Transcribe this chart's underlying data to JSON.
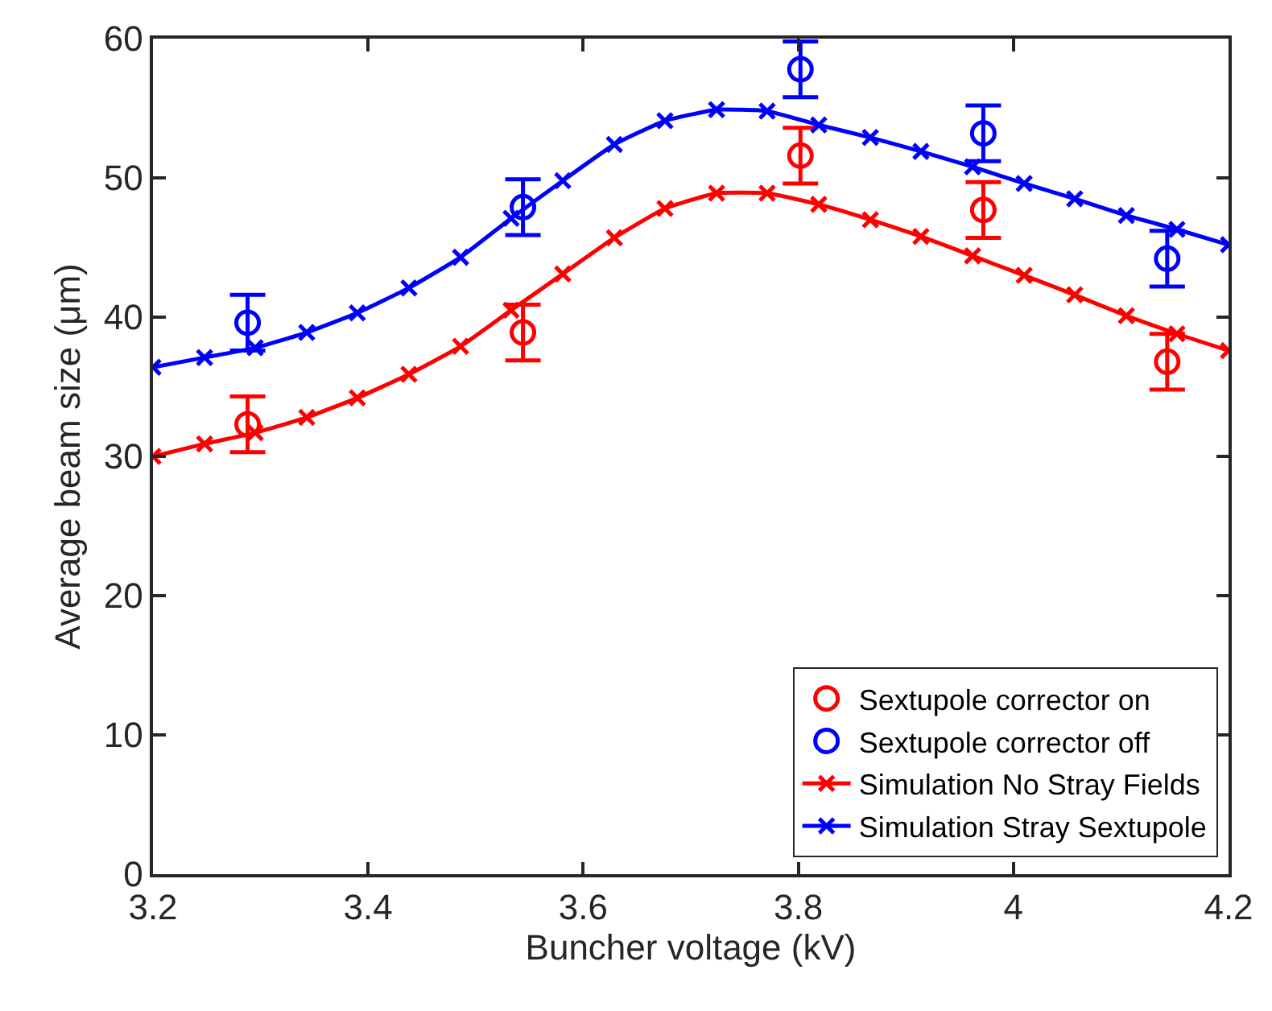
{
  "chart_data": {
    "type": "line",
    "xlabel": "Buncher voltage (kV)",
    "ylabel": "Average beam size (μm)",
    "xlim": [
      3.2,
      4.2
    ],
    "xticks": [
      3.2,
      3.4,
      3.6,
      3.8,
      4,
      4.2
    ],
    "ylim": [
      0,
      60
    ],
    "yticks": [
      0,
      10,
      20,
      30,
      40,
      50,
      60
    ],
    "legend": "bottom right",
    "series": [
      {
        "name": "Sextupole corrector on",
        "type": "scatter",
        "marker": "circle",
        "color": "#ff0000",
        "x": [
          3.288,
          3.544,
          3.802,
          3.972,
          4.143
        ],
        "values": [
          32.3,
          38.9,
          51.6,
          47.7,
          36.8
        ],
        "errors": [
          2,
          2,
          2,
          2,
          2
        ]
      },
      {
        "name": "Sextupole corrector off",
        "type": "scatter",
        "marker": "circle",
        "color": "#0000ff",
        "x": [
          3.288,
          3.544,
          3.802,
          3.972,
          4.143
        ],
        "values": [
          39.6,
          47.9,
          57.8,
          53.2,
          44.2
        ],
        "errors": [
          2,
          2,
          2,
          2,
          2
        ]
      },
      {
        "name": "Simulation No Stray Fields",
        "marker": "cross",
        "line_style": "solid",
        "color": "#ff0000",
        "x": [
          3.2,
          3.248,
          3.295,
          3.343,
          3.39,
          3.438,
          3.486,
          3.533,
          3.581,
          3.629,
          3.676,
          3.724,
          3.771,
          3.819,
          3.867,
          3.914,
          3.962,
          4.01,
          4.057,
          4.105,
          4.152,
          4.2
        ],
        "values": [
          30.0,
          30.9,
          31.7,
          32.8,
          34.2,
          35.9,
          37.9,
          40.5,
          43.1,
          45.7,
          47.8,
          48.9,
          48.9,
          48.1,
          47.0,
          45.8,
          44.4,
          43.0,
          41.6,
          40.1,
          38.8,
          37.6
        ]
      },
      {
        "name": "Simulation Stray Sextupole",
        "marker": "cross",
        "line_style": "solid",
        "color": "#0000ff",
        "x": [
          3.2,
          3.248,
          3.295,
          3.343,
          3.39,
          3.438,
          3.486,
          3.533,
          3.581,
          3.629,
          3.676,
          3.724,
          3.771,
          3.819,
          3.867,
          3.914,
          3.962,
          4.01,
          4.057,
          4.105,
          4.152,
          4.2
        ],
        "values": [
          36.4,
          37.1,
          37.8,
          38.9,
          40.3,
          42.1,
          44.3,
          47.1,
          49.8,
          52.4,
          54.1,
          54.9,
          54.8,
          53.8,
          52.9,
          51.9,
          50.8,
          49.6,
          48.5,
          47.3,
          46.3,
          45.2
        ]
      }
    ]
  }
}
